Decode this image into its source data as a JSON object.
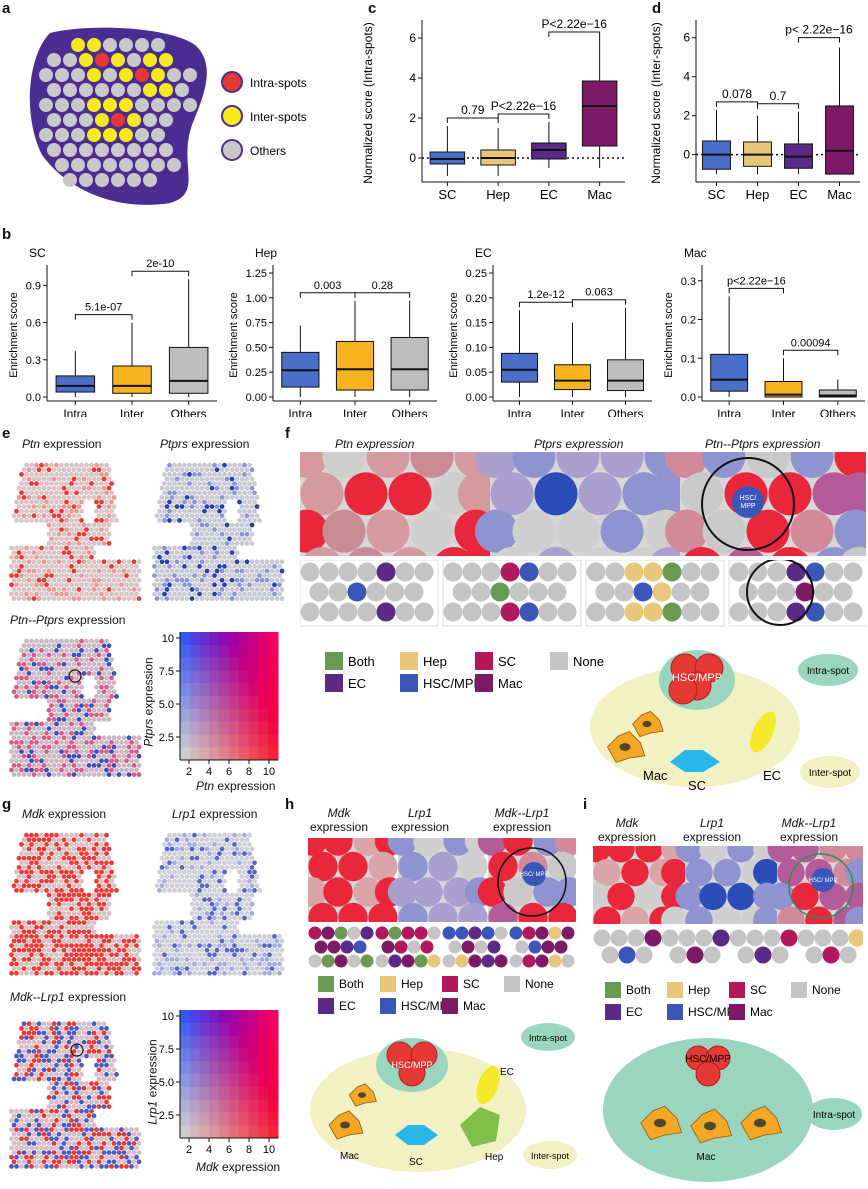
{
  "panels": {
    "a": "a",
    "b": "b",
    "c": "c",
    "d": "d",
    "e": "e",
    "f": "f",
    "g": "g",
    "h": "h",
    "i": "i"
  },
  "legend_a": {
    "intra": "Intra-spots",
    "inter": "Inter-spots",
    "others": "Others"
  },
  "colors": {
    "intra": "#e53935",
    "inter": "#f4ea1e",
    "others": "#c8c8c8",
    "blob": "#4b2d92",
    "sc_box": "#4a6fc8",
    "hep_box": "#e8c77a",
    "ec_box": "#5b2a86",
    "mac_box": "#7d1a66",
    "intra_box": "#4a6fc8",
    "inter_box": "#f5b41e",
    "others_box": "#bdbdbd",
    "both": "#6a9a52",
    "hep": "#e8c77a",
    "sc": "#b3185c",
    "none": "#c4c4c4",
    "ec": "#5b2a86",
    "hsc": "#3a56b8",
    "mac": "#7d1a66"
  },
  "chart_data": [
    {
      "id": "c",
      "type": "box",
      "ylabel": "Normalized score (Intra-spots)",
      "categories": [
        "SC",
        "Hep",
        "EC",
        "Mac"
      ],
      "ylim": [
        -1,
        6.5
      ],
      "yticks": [
        0,
        2,
        4,
        6
      ],
      "boxes": [
        {
          "whisker_low": -0.9,
          "q1": -0.3,
          "median": -0.05,
          "q3": 0.3,
          "whisker_high": 1.6
        },
        {
          "whisker_low": -0.9,
          "q1": -0.35,
          "median": 0.0,
          "q3": 0.4,
          "whisker_high": 1.5
        },
        {
          "whisker_low": -0.5,
          "q1": -0.05,
          "median": 0.4,
          "q3": 0.75,
          "whisker_high": 1.8
        },
        {
          "whisker_low": -0.5,
          "q1": 0.6,
          "median": 2.6,
          "q3": 3.85,
          "whisker_high": 6.1
        }
      ],
      "comparisons": [
        {
          "from": 0,
          "to": 1,
          "label": "0.79"
        },
        {
          "from": 1,
          "to": 2,
          "label": "P<2.22e−16"
        },
        {
          "from": 2,
          "to": 3,
          "label": "P<2.22e−16"
        }
      ]
    },
    {
      "id": "d",
      "type": "box",
      "ylabel": "Normalized score (Inter-spots)",
      "categories": [
        "SC",
        "Hep",
        "EC",
        "Mac"
      ],
      "ylim": [
        -1.2,
        6.5
      ],
      "yticks": [
        0,
        2,
        4,
        6
      ],
      "boxes": [
        {
          "whisker_low": -1.0,
          "q1": -0.75,
          "median": 0.0,
          "q3": 0.7,
          "whisker_high": 2.3
        },
        {
          "whisker_low": -1.0,
          "q1": -0.6,
          "median": 0.0,
          "q3": 0.65,
          "whisker_high": 2.0
        },
        {
          "whisker_low": -1.0,
          "q1": -0.7,
          "median": -0.1,
          "q3": 0.55,
          "whisker_high": 2.2
        },
        {
          "whisker_low": -1.0,
          "q1": -1.0,
          "median": 0.2,
          "q3": 2.5,
          "whisker_high": 5.5
        }
      ],
      "comparisons": [
        {
          "from": 0,
          "to": 1,
          "label": "0.078"
        },
        {
          "from": 1,
          "to": 2,
          "label": "0.7"
        },
        {
          "from": 2,
          "to": 3,
          "label": "p< 2.22e−16"
        }
      ]
    },
    {
      "id": "b1",
      "type": "box",
      "title": "SC",
      "ylabel": "Enrichment score",
      "categories": [
        "Intra",
        "Inter",
        "Others"
      ],
      "ylim": [
        0,
        1.0
      ],
      "yticks": [
        0.0,
        0.3,
        0.6,
        0.9
      ],
      "ytick_labels": [
        "0.0",
        "0.3",
        "0.6",
        "0.9"
      ],
      "boxes": [
        {
          "whisker_low": 0.0,
          "q1": 0.04,
          "median": 0.09,
          "q3": 0.17,
          "whisker_high": 0.37
        },
        {
          "whisker_low": 0.0,
          "q1": 0.03,
          "median": 0.09,
          "q3": 0.25,
          "whisker_high": 0.6
        },
        {
          "whisker_low": 0.0,
          "q1": 0.03,
          "median": 0.13,
          "q3": 0.4,
          "whisker_high": 0.95
        }
      ],
      "comparisons": [
        {
          "from": 0,
          "to": 1,
          "label": "5.1e-07"
        },
        {
          "from": 1,
          "to": 2,
          "label": "2e-10"
        }
      ]
    },
    {
      "id": "b2",
      "type": "box",
      "title": "Hep",
      "ylabel": "Enrichment score",
      "categories": [
        "Intra",
        "Inter",
        "Others"
      ],
      "ylim": [
        0,
        1.25
      ],
      "yticks": [
        0.0,
        0.25,
        0.5,
        0.75,
        1.0,
        1.25
      ],
      "ytick_labels": [
        "0.00",
        "0.25",
        "0.50",
        "0.75",
        "1.00",
        "1.25"
      ],
      "boxes": [
        {
          "whisker_low": 0.0,
          "q1": 0.1,
          "median": 0.27,
          "q3": 0.45,
          "whisker_high": 0.72
        },
        {
          "whisker_low": 0.0,
          "q1": 0.07,
          "median": 0.28,
          "q3": 0.56,
          "whisker_high": 0.97
        },
        {
          "whisker_low": 0.0,
          "q1": 0.07,
          "median": 0.28,
          "q3": 0.6,
          "whisker_high": 0.97
        }
      ],
      "comparisons": [
        {
          "from": 0,
          "to": 1,
          "label": "0.003"
        },
        {
          "from": 1,
          "to": 2,
          "label": "0.28"
        }
      ]
    },
    {
      "id": "b3",
      "type": "box",
      "title": "EC",
      "ylabel": "Enrichment score",
      "categories": [
        "Intra",
        "Inter",
        "Others"
      ],
      "ylim": [
        0,
        0.25
      ],
      "yticks": [
        0.0,
        0.05,
        0.1,
        0.15,
        0.2,
        0.25
      ],
      "ytick_labels": [
        "0.00",
        "0.05",
        "0.10",
        "0.15",
        "0.20",
        "0.25"
      ],
      "boxes": [
        {
          "whisker_low": 0.0,
          "q1": 0.03,
          "median": 0.055,
          "q3": 0.088,
          "whisker_high": 0.175
        },
        {
          "whisker_low": 0.0,
          "q1": 0.015,
          "median": 0.033,
          "q3": 0.065,
          "whisker_high": 0.15
        },
        {
          "whisker_low": 0.0,
          "q1": 0.013,
          "median": 0.033,
          "q3": 0.075,
          "whisker_high": 0.18
        }
      ],
      "comparisons": [
        {
          "from": 0,
          "to": 1,
          "label": "1.2e-12"
        },
        {
          "from": 1,
          "to": 2,
          "label": "0.063"
        }
      ]
    },
    {
      "id": "b4",
      "type": "box",
      "title": "Mac",
      "ylabel": "Enrichment score",
      "categories": [
        "Intra",
        "Inter",
        "Others"
      ],
      "ylim": [
        0,
        0.32
      ],
      "yticks": [
        0.0,
        0.1,
        0.2,
        0.3
      ],
      "ytick_labels": [
        "0.0",
        "0.1",
        "0.2",
        "0.3"
      ],
      "boxes": [
        {
          "whisker_low": 0.0,
          "q1": 0.015,
          "median": 0.045,
          "q3": 0.11,
          "whisker_high": 0.26
        },
        {
          "whisker_low": 0.0,
          "q1": 0.0,
          "median": 0.006,
          "q3": 0.04,
          "whisker_high": 0.1
        },
        {
          "whisker_low": 0.0,
          "q1": 0.0,
          "median": 0.004,
          "q3": 0.018,
          "whisker_high": 0.045
        }
      ],
      "comparisons": [
        {
          "from": 0,
          "to": 1,
          "label": "p<2.22e−16"
        },
        {
          "from": 1,
          "to": 2,
          "label": "0.00094"
        }
      ]
    }
  ],
  "e": {
    "map1_gene": "Ptn",
    "map1_suffix": " expression",
    "map2_gene": "Ptprs",
    "map2_suffix": " expression",
    "map3_gene": "Ptn--Ptprs",
    "map3_suffix": " expression",
    "heat_xlabel_gene": "Ptn",
    "heat_xlabel_suffix": " expression",
    "heat_ylabel_gene": "Ptprs",
    "heat_ylabel_suffix": " expression",
    "x_ticks": [
      "2",
      "4",
      "6",
      "8",
      "10"
    ],
    "y_ticks": [
      "10",
      "7.5",
      "5.0",
      "2.5"
    ]
  },
  "f": {
    "col1": "Ptn expression",
    "col2": "Ptprs expression",
    "col3": "Ptn--Ptprs expression",
    "hsc_label": "HSC/MPP",
    "hsc_short": "HSC MPP",
    "legend": [
      "Both",
      "Hep",
      "SC",
      "None",
      "EC",
      "HSC/MPP",
      "Mac"
    ],
    "intra_spot": "Intra-spot",
    "inter_spot": "Inter-spot",
    "cells": {
      "mac": "Mac",
      "sc": "SC",
      "ec": "EC",
      "hsc": "HSC/MPP"
    }
  },
  "g": {
    "map1_gene": "Mdk",
    "map1_suffix": " expression",
    "map2_gene": "Lrp1",
    "map2_suffix": " expression",
    "map3_gene": "Mdk--Lrp1",
    "map3_suffix": " expression",
    "heat_xlabel_gene": "Mdk",
    "heat_xlabel_suffix": " expression",
    "heat_ylabel_gene": "Lrp1",
    "heat_ylabel_suffix": " expression",
    "x_ticks": [
      "2",
      "4",
      "6",
      "8",
      "10"
    ],
    "y_ticks": [
      "10",
      "7.5",
      "5.0",
      "2.5"
    ]
  },
  "h": {
    "col1_gene": "Mdk",
    "col2_gene": "Lrp1",
    "col3_gene": "Mdk--Lrp1",
    "expression": "expression",
    "hsc_short": "HSC/ MPP",
    "legend": [
      "Both",
      "Hep",
      "SC",
      "None",
      "EC",
      "HSC/MPP",
      "Mac"
    ],
    "intra_spot": "Intra-spot",
    "inter_spot": "Inter-spot",
    "cells": {
      "mac": "Mac",
      "sc": "SC",
      "ec": "EC",
      "hep": "Hep",
      "hsc": "HSC/MPP"
    }
  },
  "i": {
    "col1_gene": "Mdk",
    "col2_gene": "Lrp1",
    "col3_gene": "Mdk--Lrp1",
    "expression": "expression",
    "hsc_short": "HSC/ MPP",
    "legend": [
      "Both",
      "Hep",
      "SC",
      "None",
      "EC",
      "HSC/MPP",
      "Mac"
    ],
    "intra_spot": "Intra-spot",
    "cells": {
      "mac": "Mac",
      "hsc": "HSC/MPP"
    }
  }
}
